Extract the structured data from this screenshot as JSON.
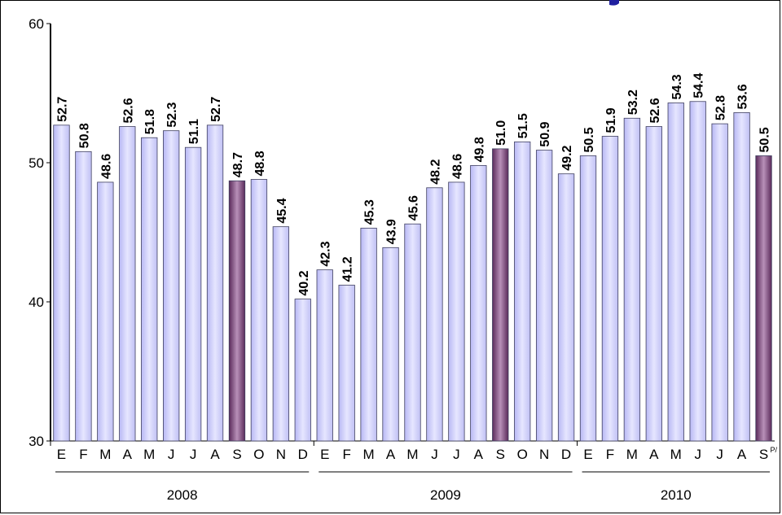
{
  "chart_data": {
    "type": "bar",
    "ylim": [
      30,
      60
    ],
    "yticks": [
      "30",
      "40",
      "50",
      "60"
    ],
    "grid": false,
    "categories": [
      "E",
      "F",
      "M",
      "A",
      "M",
      "J",
      "J",
      "A",
      "S",
      "O",
      "N",
      "D",
      "E",
      "F",
      "M",
      "A",
      "M",
      "J",
      "J",
      "A",
      "S",
      "O",
      "N",
      "D",
      "E",
      "F",
      "M",
      "A",
      "M",
      "J",
      "J",
      "A",
      "S"
    ],
    "values": [
      52.7,
      50.8,
      48.6,
      52.6,
      51.8,
      52.3,
      51.1,
      52.7,
      48.7,
      48.8,
      45.4,
      40.2,
      42.3,
      41.2,
      45.3,
      43.9,
      45.6,
      48.2,
      48.6,
      49.8,
      51.0,
      51.5,
      50.9,
      49.2,
      50.5,
      51.9,
      53.2,
      52.6,
      54.3,
      54.4,
      52.8,
      53.6,
      50.5
    ],
    "labels": [
      "52.7",
      "50.8",
      "48.6",
      "52.6",
      "51.8",
      "52.3",
      "51.1",
      "52.7",
      "48.7",
      "48.8",
      "45.4",
      "40.2",
      "42.3",
      "41.2",
      "45.3",
      "43.9",
      "45.6",
      "48.2",
      "48.6",
      "49.8",
      "51.0",
      "51.5",
      "50.9",
      "49.2",
      "50.5",
      "51.9",
      "53.2",
      "52.6",
      "54.3",
      "54.4",
      "52.8",
      "53.6",
      "50.5"
    ],
    "highlighted": [
      8,
      20,
      32
    ],
    "last_label_suffix": "P/",
    "year_groups": [
      {
        "label": "2008",
        "start": 0,
        "end": 11
      },
      {
        "label": "2009",
        "start": 12,
        "end": 23
      },
      {
        "label": "2010",
        "start": 24,
        "end": 32
      }
    ],
    "colors": {
      "bar_light": "#e6e6ff",
      "bar_mid": "#b8b8f4",
      "bar_dark": "#c0c0f4",
      "highlight_light": "#b890b8",
      "highlight_dark": "#5a2a5a",
      "stroke": "#404060",
      "title_fragment": "#2020a0"
    }
  }
}
